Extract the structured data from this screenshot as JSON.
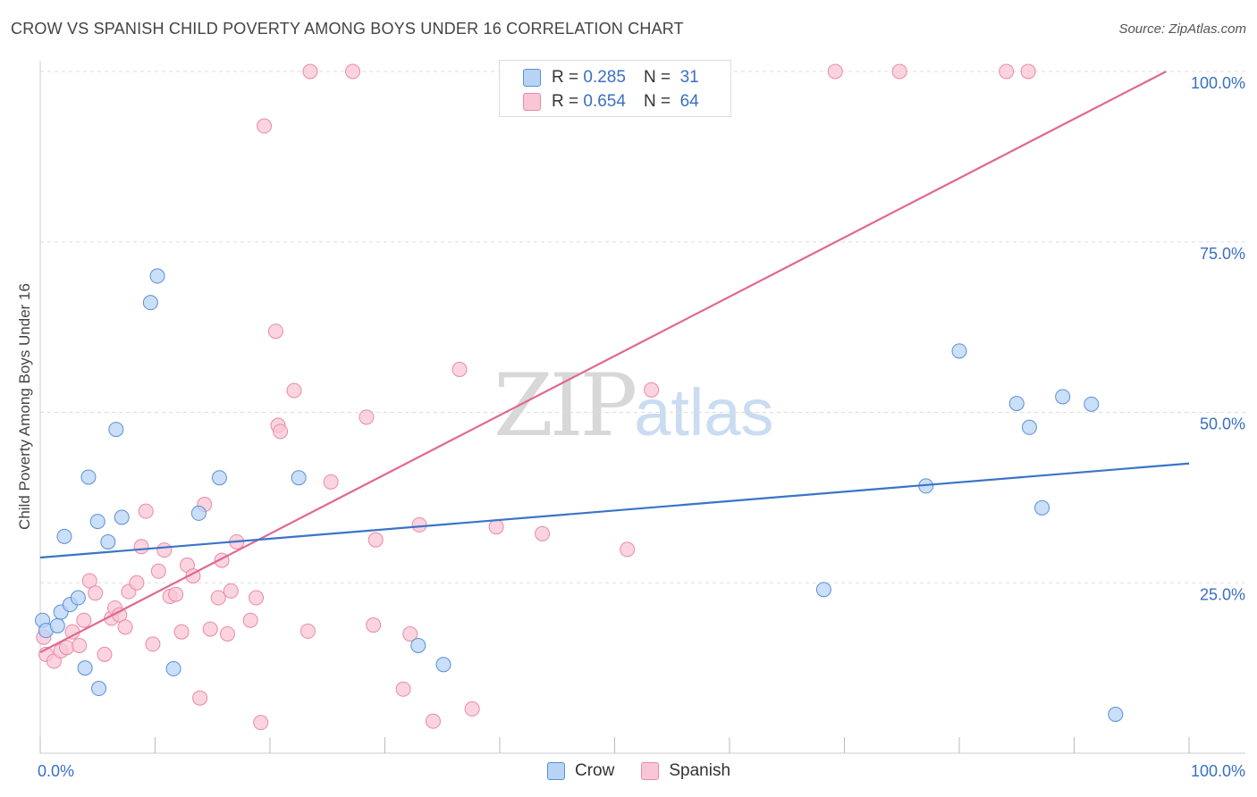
{
  "title": "CROW VS SPANISH CHILD POVERTY AMONG BOYS UNDER 16 CORRELATION CHART",
  "source": "Source: ZipAtlas.com",
  "watermark": {
    "zip": "ZIP",
    "atlas": "atlas"
  },
  "legend": {
    "rows": [
      {
        "r_label": "R =",
        "r_value": "0.285",
        "n_label": "N =",
        "n_value": "31"
      },
      {
        "r_label": "R =",
        "r_value": "0.654",
        "n_label": "N =",
        "n_value": "64"
      }
    ]
  },
  "colors": {
    "crow_fill": "#b8d4f5",
    "crow_stroke": "#5a8fd6",
    "crow_line": "#3a74c8",
    "spanish_fill": "#f9c6d6",
    "spanish_stroke": "#e98aa8",
    "spanish_line": "#e06890",
    "grid": "#dddddd",
    "tick_label": "#3a6fc4"
  },
  "chart_data": {
    "type": "scatter",
    "title": "CROW VS SPANISH CHILD POVERTY AMONG BOYS UNDER 16 CORRELATION CHART",
    "xlabel": "",
    "ylabel": "Child Poverty Among Boys Under 16",
    "xlim": [
      0,
      100
    ],
    "ylim": [
      0,
      100
    ],
    "x_tick_labels": [
      "0.0%",
      "100.0%"
    ],
    "y_ticks": [
      25,
      50,
      75,
      100
    ],
    "y_tick_labels": [
      "25.0%",
      "50.0%",
      "75.0%",
      "100.0%"
    ],
    "grid": true,
    "series": [
      {
        "name": "Crow",
        "r": 0.285,
        "n": 31,
        "trend": {
          "x": [
            0,
            100
          ],
          "y": [
            28.7,
            42.5
          ]
        },
        "points": [
          [
            0.2,
            19.5
          ],
          [
            0.5,
            18.0
          ],
          [
            1.5,
            18.7
          ],
          [
            1.8,
            20.7
          ],
          [
            2.1,
            31.8
          ],
          [
            2.6,
            21.8
          ],
          [
            3.3,
            22.8
          ],
          [
            3.9,
            12.5
          ],
          [
            4.2,
            40.5
          ],
          [
            5.0,
            34.0
          ],
          [
            5.1,
            9.5
          ],
          [
            5.9,
            31.0
          ],
          [
            6.6,
            47.5
          ],
          [
            7.1,
            34.6
          ],
          [
            9.6,
            66.1
          ],
          [
            10.2,
            70.0
          ],
          [
            11.6,
            12.4
          ],
          [
            13.8,
            35.2
          ],
          [
            15.6,
            40.4
          ],
          [
            22.5,
            40.4
          ],
          [
            32.9,
            15.8
          ],
          [
            35.1,
            13.0
          ],
          [
            68.2,
            24.0
          ],
          [
            77.1,
            39.2
          ],
          [
            80.0,
            59.0
          ],
          [
            85.0,
            51.3
          ],
          [
            86.1,
            47.8
          ],
          [
            87.2,
            36.0
          ],
          [
            89.0,
            52.3
          ],
          [
            91.5,
            51.2
          ],
          [
            93.6,
            5.7
          ]
        ]
      },
      {
        "name": "Spanish",
        "r": 0.654,
        "n": 64,
        "trend": {
          "x": [
            0,
            98
          ],
          "y": [
            14.8,
            100
          ]
        },
        "points": [
          [
            0.5,
            14.5
          ],
          [
            1.2,
            13.5
          ],
          [
            1.8,
            15.0
          ],
          [
            2.3,
            15.5
          ],
          [
            2.8,
            17.8
          ],
          [
            3.4,
            15.8
          ],
          [
            3.8,
            19.5
          ],
          [
            4.3,
            25.3
          ],
          [
            4.8,
            23.5
          ],
          [
            5.6,
            14.5
          ],
          [
            6.2,
            19.8
          ],
          [
            6.5,
            21.3
          ],
          [
            6.9,
            20.3
          ],
          [
            7.4,
            18.5
          ],
          [
            7.7,
            23.7
          ],
          [
            8.4,
            25.0
          ],
          [
            8.8,
            30.3
          ],
          [
            9.2,
            35.5
          ],
          [
            9.8,
            16.0
          ],
          [
            10.3,
            26.7
          ],
          [
            10.8,
            29.8
          ],
          [
            11.3,
            23.0
          ],
          [
            11.8,
            23.3
          ],
          [
            12.3,
            17.8
          ],
          [
            12.8,
            27.6
          ],
          [
            13.3,
            26.0
          ],
          [
            13.9,
            8.1
          ],
          [
            14.3,
            36.5
          ],
          [
            14.8,
            18.2
          ],
          [
            15.5,
            22.8
          ],
          [
            15.8,
            28.3
          ],
          [
            16.3,
            17.5
          ],
          [
            16.6,
            23.8
          ],
          [
            17.1,
            31.0
          ],
          [
            18.3,
            19.5
          ],
          [
            18.8,
            22.8
          ],
          [
            19.2,
            4.5
          ],
          [
            19.5,
            92.0
          ],
          [
            20.5,
            61.9
          ],
          [
            20.7,
            48.1
          ],
          [
            20.9,
            47.2
          ],
          [
            22.1,
            53.2
          ],
          [
            23.3,
            17.9
          ],
          [
            23.5,
            100.0
          ],
          [
            25.3,
            39.8
          ],
          [
            27.2,
            100.0
          ],
          [
            28.4,
            49.3
          ],
          [
            29.0,
            18.8
          ],
          [
            29.2,
            31.3
          ],
          [
            31.6,
            9.4
          ],
          [
            32.2,
            17.5
          ],
          [
            33.0,
            33.5
          ],
          [
            34.2,
            4.7
          ],
          [
            36.5,
            56.3
          ],
          [
            37.6,
            6.5
          ],
          [
            39.7,
            33.2
          ],
          [
            43.7,
            32.2
          ],
          [
            51.1,
            29.9
          ],
          [
            53.2,
            53.3
          ],
          [
            69.2,
            100.0
          ],
          [
            74.8,
            100.0
          ],
          [
            84.1,
            100.0
          ],
          [
            86.0,
            100.0
          ],
          [
            0.3,
            17.0
          ]
        ]
      }
    ]
  },
  "bottom_legend": {
    "crow": "Crow",
    "spanish": "Spanish"
  }
}
